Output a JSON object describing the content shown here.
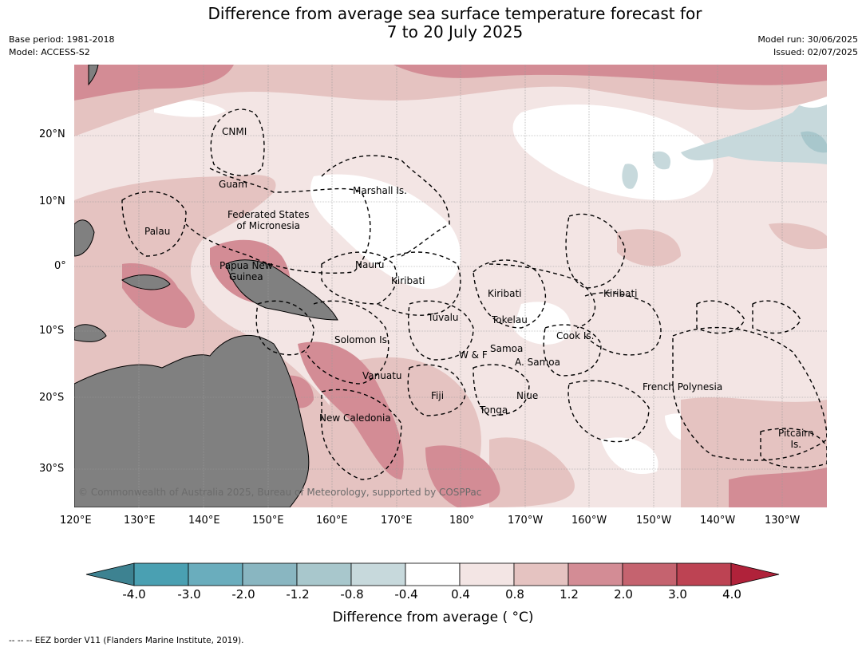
{
  "title_line1": "Difference from average sea surface temperature forecast for",
  "title_line2": "7 to 20 July 2025",
  "meta_left": {
    "line1": "Base period: 1981-2018",
    "line2": "Model: ACCESS-S2"
  },
  "meta_right": {
    "line1": "Model run: 30/06/2025",
    "line2": "Issued: 02/07/2025"
  },
  "lat_labels": [
    "20°N",
    "10°N",
    "0°",
    "10°S",
    "20°S",
    "30°S"
  ],
  "lon_labels": [
    "120°E",
    "130°E",
    "140°E",
    "150°E",
    "160°E",
    "170°E",
    "180°",
    "170°W",
    "160°W",
    "150°W",
    "140°W",
    "130°W"
  ],
  "regions": {
    "cnmi": "CNMI",
    "guam": "Guam",
    "marshall": "Marshall Is.",
    "fsm": "Federated States\nof Micronesia",
    "palau": "Palau",
    "png": "Papua New\nGuinea",
    "nauru": "Nauru",
    "kiribati_w": "Kiribati",
    "kiribati_c": "Kiribati",
    "kiribati_e": "Kiribati",
    "tuvalu": "Tuvalu",
    "tokelau": "Tokelau",
    "solomon": "Solomon Is.",
    "samoa": "Samoa",
    "wf": "W & F",
    "asamoa": "A. Samoa",
    "cook": "Cook Is.",
    "vanuatu": "Vanuatu",
    "fiji": "Fiji",
    "niue": "Niue",
    "tonga": "Tonga",
    "french_polynesia": "French Polynesia",
    "new_caledonia": "New Caledonia",
    "pitcairn": "Pitcairn\nIs."
  },
  "copyright": "© Commonwealth of Australia 2025, Bureau of Meteorology, supported by COSPPac",
  "colorbar": {
    "ticks": [
      "-4.0",
      "-3.0",
      "-2.0",
      "-1.2",
      "-0.8",
      "-0.4",
      "0.4",
      "0.8",
      "1.2",
      "2.0",
      "3.0",
      "4.0"
    ],
    "colors": [
      "#3d8291",
      "#4aa0b2",
      "#6aadbd",
      "#89b6c1",
      "#a8c7cc",
      "#c7d9dc",
      "#ffffff",
      "#f3e5e4",
      "#e5c3c1",
      "#d38c95",
      "#c5636f",
      "#bd4353",
      "#b0223a"
    ],
    "title": "Difference from average ( °C)"
  },
  "footnote": "--  --  -- EEZ border V11 (Flanders Marine Institute, 2019).",
  "colors": {
    "land": "#808080",
    "ocean_low": "#f3e5e4",
    "ocean_mid": "#e5c3c1",
    "ocean_high": "#d38c95"
  }
}
